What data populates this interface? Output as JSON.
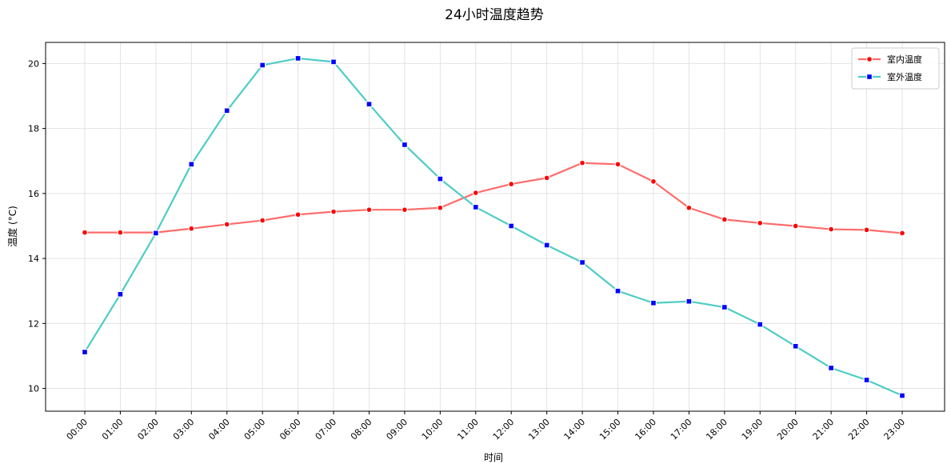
{
  "chart_data": {
    "type": "line",
    "title": "24小时温度趋势",
    "xlabel": "时间",
    "ylabel": "温度 (°C)",
    "categories": [
      "00:00",
      "01:00",
      "02:00",
      "03:00",
      "04:00",
      "05:00",
      "06:00",
      "07:00",
      "08:00",
      "09:00",
      "10:00",
      "11:00",
      "12:00",
      "13:00",
      "14:00",
      "15:00",
      "16:00",
      "17:00",
      "18:00",
      "19:00",
      "20:00",
      "21:00",
      "22:00",
      "23:00"
    ],
    "ylim": [
      9.3,
      20.65
    ],
    "yticks": [
      10,
      12,
      14,
      16,
      18,
      20
    ],
    "grid": true,
    "legend_position": "top-right",
    "series": [
      {
        "name": "室内温度",
        "color": "#ff6b6b",
        "marker_color": "#ff0000",
        "marker": "circle",
        "values": [
          14.8,
          14.8,
          14.8,
          14.92,
          15.05,
          15.17,
          15.35,
          15.44,
          15.5,
          15.5,
          15.56,
          16.02,
          16.29,
          16.48,
          16.94,
          16.9,
          16.37,
          15.56,
          15.2,
          15.09,
          15.0,
          14.9,
          14.88,
          14.78
        ]
      },
      {
        "name": "室外温度",
        "color": "#4ecdc4",
        "marker_color": "#0000ff",
        "marker": "square",
        "values": [
          11.12,
          12.9,
          14.78,
          16.9,
          18.55,
          19.95,
          20.16,
          20.05,
          18.75,
          17.5,
          16.45,
          15.58,
          15.0,
          14.41,
          13.88,
          13.0,
          12.63,
          12.68,
          12.5,
          11.97,
          11.3,
          10.63,
          10.26,
          9.78
        ]
      }
    ]
  }
}
